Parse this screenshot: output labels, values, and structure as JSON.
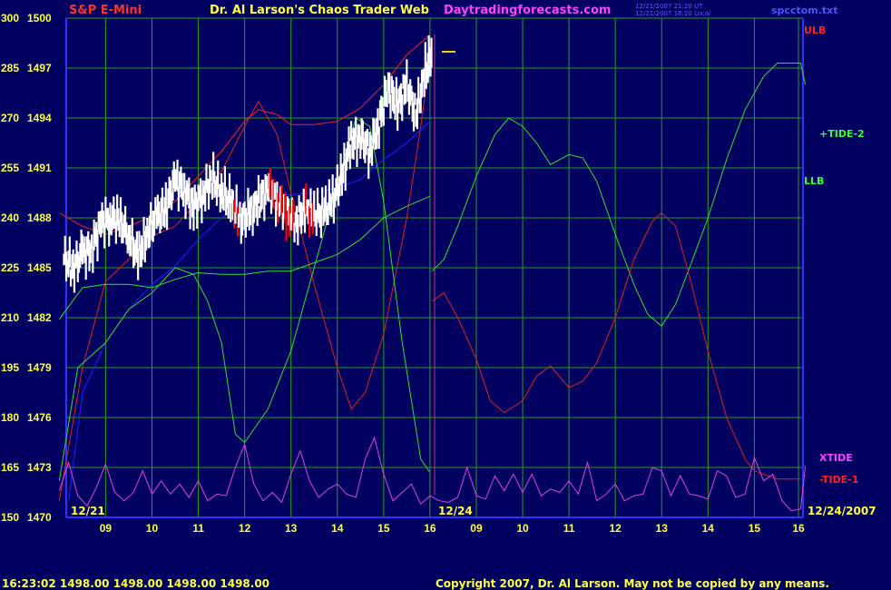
{
  "header": {
    "symbol": "S&P E-Mini",
    "title": "Dr. Al Larson's Chaos Trader Web",
    "site": "Daytradingforecasts.com",
    "timestamp_line1": "12/21/2007 21:20 UT",
    "timestamp_line2": "12/21/2007 16:20 Local",
    "file": "spcctom.txt"
  },
  "footer": {
    "quote": "16:23:02  1498.00 1498.00 1498.00 1498.00",
    "copyright": "Copyright 2007, Dr. Al Larson. May not be copied by any means."
  },
  "colors": {
    "background": "#000060",
    "grid": "#20a020",
    "axis": "#3030ff",
    "price_up": "#ffffff",
    "price_down": "#ff0000",
    "band": "#e02020",
    "ema": "#2020ff",
    "tide": "#30e030",
    "xtide": "#e040e0",
    "close_marker": "#ffd000"
  },
  "chart_data": {
    "type": "line",
    "y_axis_left_scale": [
      150,
      165,
      180,
      195,
      210,
      225,
      240,
      255,
      270,
      285,
      300
    ],
    "y_axis_price": [
      1470,
      1473,
      1476,
      1479,
      1482,
      1485,
      1488,
      1491,
      1494,
      1497,
      1500
    ],
    "ylim_price": [
      1470,
      1500
    ],
    "x_ticks": [
      "09",
      "10",
      "11",
      "12",
      "13",
      "14",
      "15",
      "16",
      "09",
      "10",
      "11",
      "12",
      "13",
      "14",
      "15",
      "16"
    ],
    "date_labels": [
      "12/21",
      "12/24",
      "12/24/2007"
    ],
    "grid": true,
    "series_labels": [
      "ULB",
      "+TIDE-2",
      "LLB",
      "XTIDE",
      "-TIDE-1"
    ],
    "price_bars": [
      {
        "x": 8.1,
        "y": 1485.5
      },
      {
        "x": 8.3,
        "y": 1485.0
      },
      {
        "x": 8.5,
        "y": 1485.8
      },
      {
        "x": 8.7,
        "y": 1486.2
      },
      {
        "x": 8.9,
        "y": 1487.6
      },
      {
        "x": 9.1,
        "y": 1488.0
      },
      {
        "x": 9.3,
        "y": 1487.8
      },
      {
        "x": 9.5,
        "y": 1487.0
      },
      {
        "x": 9.7,
        "y": 1485.6
      },
      {
        "x": 9.9,
        "y": 1487.2
      },
      {
        "x": 10.1,
        "y": 1488.0
      },
      {
        "x": 10.3,
        "y": 1488.6
      },
      {
        "x": 10.5,
        "y": 1490.2
      },
      {
        "x": 10.7,
        "y": 1489.7
      },
      {
        "x": 10.9,
        "y": 1488.6
      },
      {
        "x": 11.1,
        "y": 1489.5
      },
      {
        "x": 11.3,
        "y": 1490.3
      },
      {
        "x": 11.5,
        "y": 1489.6
      },
      {
        "x": 11.7,
        "y": 1488.9
      },
      {
        "x": 11.9,
        "y": 1487.9
      },
      {
        "x": 12.1,
        "y": 1488.2
      },
      {
        "x": 12.3,
        "y": 1489.0
      },
      {
        "x": 12.5,
        "y": 1489.7
      },
      {
        "x": 12.7,
        "y": 1489.0
      },
      {
        "x": 12.9,
        "y": 1488.3
      },
      {
        "x": 13.1,
        "y": 1487.8
      },
      {
        "x": 13.3,
        "y": 1488.6
      },
      {
        "x": 13.5,
        "y": 1488.2
      },
      {
        "x": 13.7,
        "y": 1488.3
      },
      {
        "x": 13.9,
        "y": 1489.0
      },
      {
        "x": 14.1,
        "y": 1490.5
      },
      {
        "x": 14.3,
        "y": 1492.6
      },
      {
        "x": 14.5,
        "y": 1492.9
      },
      {
        "x": 14.7,
        "y": 1492.0
      },
      {
        "x": 14.9,
        "y": 1493.7
      },
      {
        "x": 15.1,
        "y": 1495.8
      },
      {
        "x": 15.3,
        "y": 1494.7
      },
      {
        "x": 15.5,
        "y": 1496.0
      },
      {
        "x": 15.7,
        "y": 1494.2
      },
      {
        "x": 15.9,
        "y": 1496.8
      },
      {
        "x": 16.05,
        "y": 1497.8
      }
    ],
    "series": [
      {
        "points": [
          [
            8.0,
            1488.3
          ],
          [
            8.5,
            1487.5
          ],
          [
            9.0,
            1487.0
          ],
          [
            9.5,
            1487.5
          ],
          [
            10.0,
            1488.1
          ],
          [
            10.5,
            1489.0
          ],
          [
            11.0,
            1490.5
          ],
          [
            11.5,
            1492.0
          ],
          [
            12.0,
            1493.8
          ],
          [
            12.3,
            1494.5
          ],
          [
            12.7,
            1494.2
          ],
          [
            13.0,
            1493.6
          ],
          [
            13.5,
            1493.6
          ],
          [
            14.0,
            1493.8
          ],
          [
            14.5,
            1494.6
          ],
          [
            15.0,
            1496.0
          ],
          [
            15.5,
            1497.8
          ],
          [
            16.0,
            1499.0
          ]
        ]
      },
      {
        "points": [
          [
            8.0,
            1471.0
          ],
          [
            8.5,
            1479.0
          ],
          [
            9.0,
            1484.2
          ],
          [
            9.5,
            1485.5
          ],
          [
            10.0,
            1486.9
          ],
          [
            10.5,
            1487.5
          ],
          [
            11.0,
            1489.0
          ],
          [
            11.5,
            1490.8
          ],
          [
            12.0,
            1493.5
          ],
          [
            12.3,
            1495.0
          ],
          [
            12.7,
            1493.0
          ],
          [
            13.0,
            1489.5
          ],
          [
            13.5,
            1484.0
          ],
          [
            14.0,
            1479.0
          ],
          [
            14.3,
            1476.5
          ],
          [
            14.6,
            1477.5
          ],
          [
            15.0,
            1481.0
          ],
          [
            15.5,
            1488.0
          ],
          [
            15.8,
            1493.5
          ],
          [
            16.0,
            1497.5
          ]
        ]
      },
      {
        "points": [
          [
            8.2,
            1471.0
          ],
          [
            8.5,
            1477.5
          ],
          [
            9.0,
            1480.5
          ],
          [
            9.5,
            1482.5
          ],
          [
            10.0,
            1484.0
          ],
          [
            10.5,
            1485.1
          ],
          [
            11.0,
            1486.7
          ],
          [
            11.5,
            1488.0
          ],
          [
            12.0,
            1489.0
          ],
          [
            12.5,
            1489.3
          ],
          [
            13.0,
            1489.4
          ],
          [
            13.5,
            1489.5
          ],
          [
            14.0,
            1489.8
          ],
          [
            14.5,
            1490.3
          ],
          [
            15.0,
            1491.5
          ],
          [
            15.5,
            1492.5
          ],
          [
            16.0,
            1493.8
          ]
        ]
      },
      {
        "points": [
          [
            8.0,
            1472.2
          ],
          [
            8.4,
            1479.0
          ],
          [
            9.0,
            1480.5
          ],
          [
            9.5,
            1482.5
          ],
          [
            10.0,
            1483.5
          ],
          [
            10.5,
            1485.0
          ],
          [
            10.9,
            1484.6
          ],
          [
            11.2,
            1483.0
          ],
          [
            11.5,
            1480.5
          ],
          [
            11.8,
            1475.0
          ],
          [
            12.0,
            1474.5
          ],
          [
            12.5,
            1476.5
          ],
          [
            13.0,
            1480.0
          ],
          [
            13.5,
            1485.0
          ],
          [
            14.0,
            1490.0
          ],
          [
            14.4,
            1494.0
          ],
          [
            14.7,
            1493.5
          ],
          [
            15.0,
            1489.0
          ],
          [
            15.4,
            1480.5
          ],
          [
            15.8,
            1473.5
          ],
          [
            16.0,
            1472.7
          ]
        ]
      },
      {
        "points": [
          [
            8.0,
            1481.9
          ],
          [
            8.5,
            1483.8
          ],
          [
            9.0,
            1484.0
          ],
          [
            9.5,
            1484.0
          ],
          [
            10.0,
            1483.8
          ],
          [
            10.5,
            1484.3
          ],
          [
            11.0,
            1484.7
          ],
          [
            11.5,
            1484.6
          ],
          [
            12.0,
            1484.6
          ],
          [
            12.5,
            1484.8
          ],
          [
            13.0,
            1484.8
          ],
          [
            13.5,
            1485.3
          ],
          [
            14.0,
            1485.8
          ],
          [
            14.5,
            1486.7
          ],
          [
            15.0,
            1488.0
          ],
          [
            15.5,
            1488.7
          ],
          [
            16.0,
            1489.3
          ]
        ]
      },
      {
        "points": [
          [
            16.05,
            1484.8
          ],
          [
            16.3,
            1485.5
          ],
          [
            16.6,
            1487.5
          ],
          [
            17.0,
            1490.5
          ],
          [
            17.4,
            1493.0
          ],
          [
            17.7,
            1494.0
          ],
          [
            18.0,
            1493.5
          ],
          [
            18.3,
            1492.5
          ],
          [
            18.6,
            1491.2
          ],
          [
            19.0,
            1491.8
          ],
          [
            19.3,
            1491.6
          ],
          [
            19.6,
            1490.2
          ],
          [
            20.0,
            1487.0
          ],
          [
            20.4,
            1484.0
          ],
          [
            20.7,
            1482.2
          ],
          [
            21.0,
            1481.5
          ],
          [
            21.3,
            1482.8
          ],
          [
            21.6,
            1485.0
          ],
          [
            22.0,
            1488.0
          ],
          [
            22.4,
            1491.5
          ],
          [
            22.8,
            1494.5
          ],
          [
            23.2,
            1496.5
          ],
          [
            23.5,
            1497.3
          ],
          [
            24.0,
            1497.3
          ],
          [
            24.1,
            1496.0
          ]
        ]
      },
      {
        "points": [
          [
            16.05,
            1483.0
          ],
          [
            16.3,
            1483.5
          ],
          [
            16.6,
            1482.0
          ],
          [
            17.0,
            1479.5
          ],
          [
            17.3,
            1477.0
          ],
          [
            17.6,
            1476.3
          ],
          [
            18.0,
            1477.0
          ],
          [
            18.3,
            1478.5
          ],
          [
            18.6,
            1479.1
          ],
          [
            19.0,
            1477.8
          ],
          [
            19.3,
            1478.2
          ],
          [
            19.6,
            1479.3
          ],
          [
            20.0,
            1482.0
          ],
          [
            20.4,
            1485.5
          ],
          [
            20.8,
            1487.8
          ],
          [
            21.0,
            1488.3
          ],
          [
            21.3,
            1487.5
          ],
          [
            21.6,
            1484.5
          ],
          [
            22.0,
            1480.0
          ],
          [
            22.4,
            1476.0
          ],
          [
            22.8,
            1473.5
          ],
          [
            23.0,
            1472.8
          ],
          [
            23.5,
            1472.3
          ],
          [
            24.0,
            1472.3
          ]
        ]
      },
      {
        "points": [
          [
            8.0,
            1471.6
          ],
          [
            8.2,
            1473.3
          ],
          [
            8.4,
            1471.3
          ],
          [
            8.6,
            1470.7
          ],
          [
            8.8,
            1471.8
          ],
          [
            9.0,
            1473.2
          ],
          [
            9.2,
            1471.5
          ],
          [
            9.4,
            1471.0
          ],
          [
            9.6,
            1471.5
          ],
          [
            9.8,
            1472.8
          ],
          [
            10.0,
            1471.4
          ],
          [
            10.2,
            1472.2
          ],
          [
            10.4,
            1471.4
          ],
          [
            10.6,
            1472.0
          ],
          [
            10.8,
            1471.2
          ],
          [
            11.0,
            1472.2
          ],
          [
            11.2,
            1471.0
          ],
          [
            11.4,
            1471.4
          ],
          [
            11.6,
            1471.3
          ],
          [
            11.8,
            1473.0
          ],
          [
            12.0,
            1474.4
          ],
          [
            12.2,
            1472.0
          ],
          [
            12.4,
            1471.0
          ],
          [
            12.6,
            1471.5
          ],
          [
            12.8,
            1470.9
          ],
          [
            13.0,
            1472.6
          ],
          [
            13.2,
            1474.0
          ],
          [
            13.4,
            1472.2
          ],
          [
            13.6,
            1471.2
          ],
          [
            13.8,
            1471.7
          ],
          [
            14.0,
            1472.0
          ],
          [
            14.2,
            1471.4
          ],
          [
            14.4,
            1471.2
          ],
          [
            14.6,
            1473.5
          ],
          [
            14.8,
            1474.8
          ],
          [
            15.0,
            1472.6
          ],
          [
            15.2,
            1471.0
          ],
          [
            15.4,
            1471.5
          ],
          [
            15.6,
            1472.0
          ],
          [
            15.8,
            1470.8
          ],
          [
            16.0,
            1471.3
          ],
          [
            16.2,
            1471.0
          ],
          [
            16.4,
            1470.9
          ],
          [
            16.6,
            1471.2
          ],
          [
            16.8,
            1473.0
          ],
          [
            17.0,
            1471.3
          ],
          [
            17.2,
            1471.1
          ],
          [
            17.4,
            1472.5
          ],
          [
            17.6,
            1471.6
          ],
          [
            17.8,
            1472.6
          ],
          [
            18.0,
            1471.5
          ],
          [
            18.2,
            1472.6
          ],
          [
            18.4,
            1471.3
          ],
          [
            18.6,
            1471.7
          ],
          [
            18.8,
            1471.5
          ],
          [
            19.0,
            1472.2
          ],
          [
            19.2,
            1471.4
          ],
          [
            19.4,
            1473.3
          ],
          [
            19.6,
            1471.0
          ],
          [
            19.8,
            1471.4
          ],
          [
            20.0,
            1472.0
          ],
          [
            20.2,
            1471.0
          ],
          [
            20.4,
            1471.3
          ],
          [
            20.6,
            1471.4
          ],
          [
            20.8,
            1473.0
          ],
          [
            21.0,
            1472.8
          ],
          [
            21.2,
            1471.3
          ],
          [
            21.4,
            1472.5
          ],
          [
            21.6,
            1471.4
          ],
          [
            21.8,
            1471.3
          ],
          [
            22.0,
            1471.1
          ],
          [
            22.2,
            1472.8
          ],
          [
            22.4,
            1472.5
          ],
          [
            22.6,
            1471.2
          ],
          [
            22.8,
            1471.4
          ],
          [
            23.0,
            1473.6
          ],
          [
            23.2,
            1472.2
          ],
          [
            23.4,
            1472.6
          ],
          [
            23.6,
            1471.0
          ],
          [
            23.8,
            1470.4
          ],
          [
            24.0,
            1470.5
          ],
          [
            24.1,
            1473.1
          ]
        ]
      }
    ]
  }
}
